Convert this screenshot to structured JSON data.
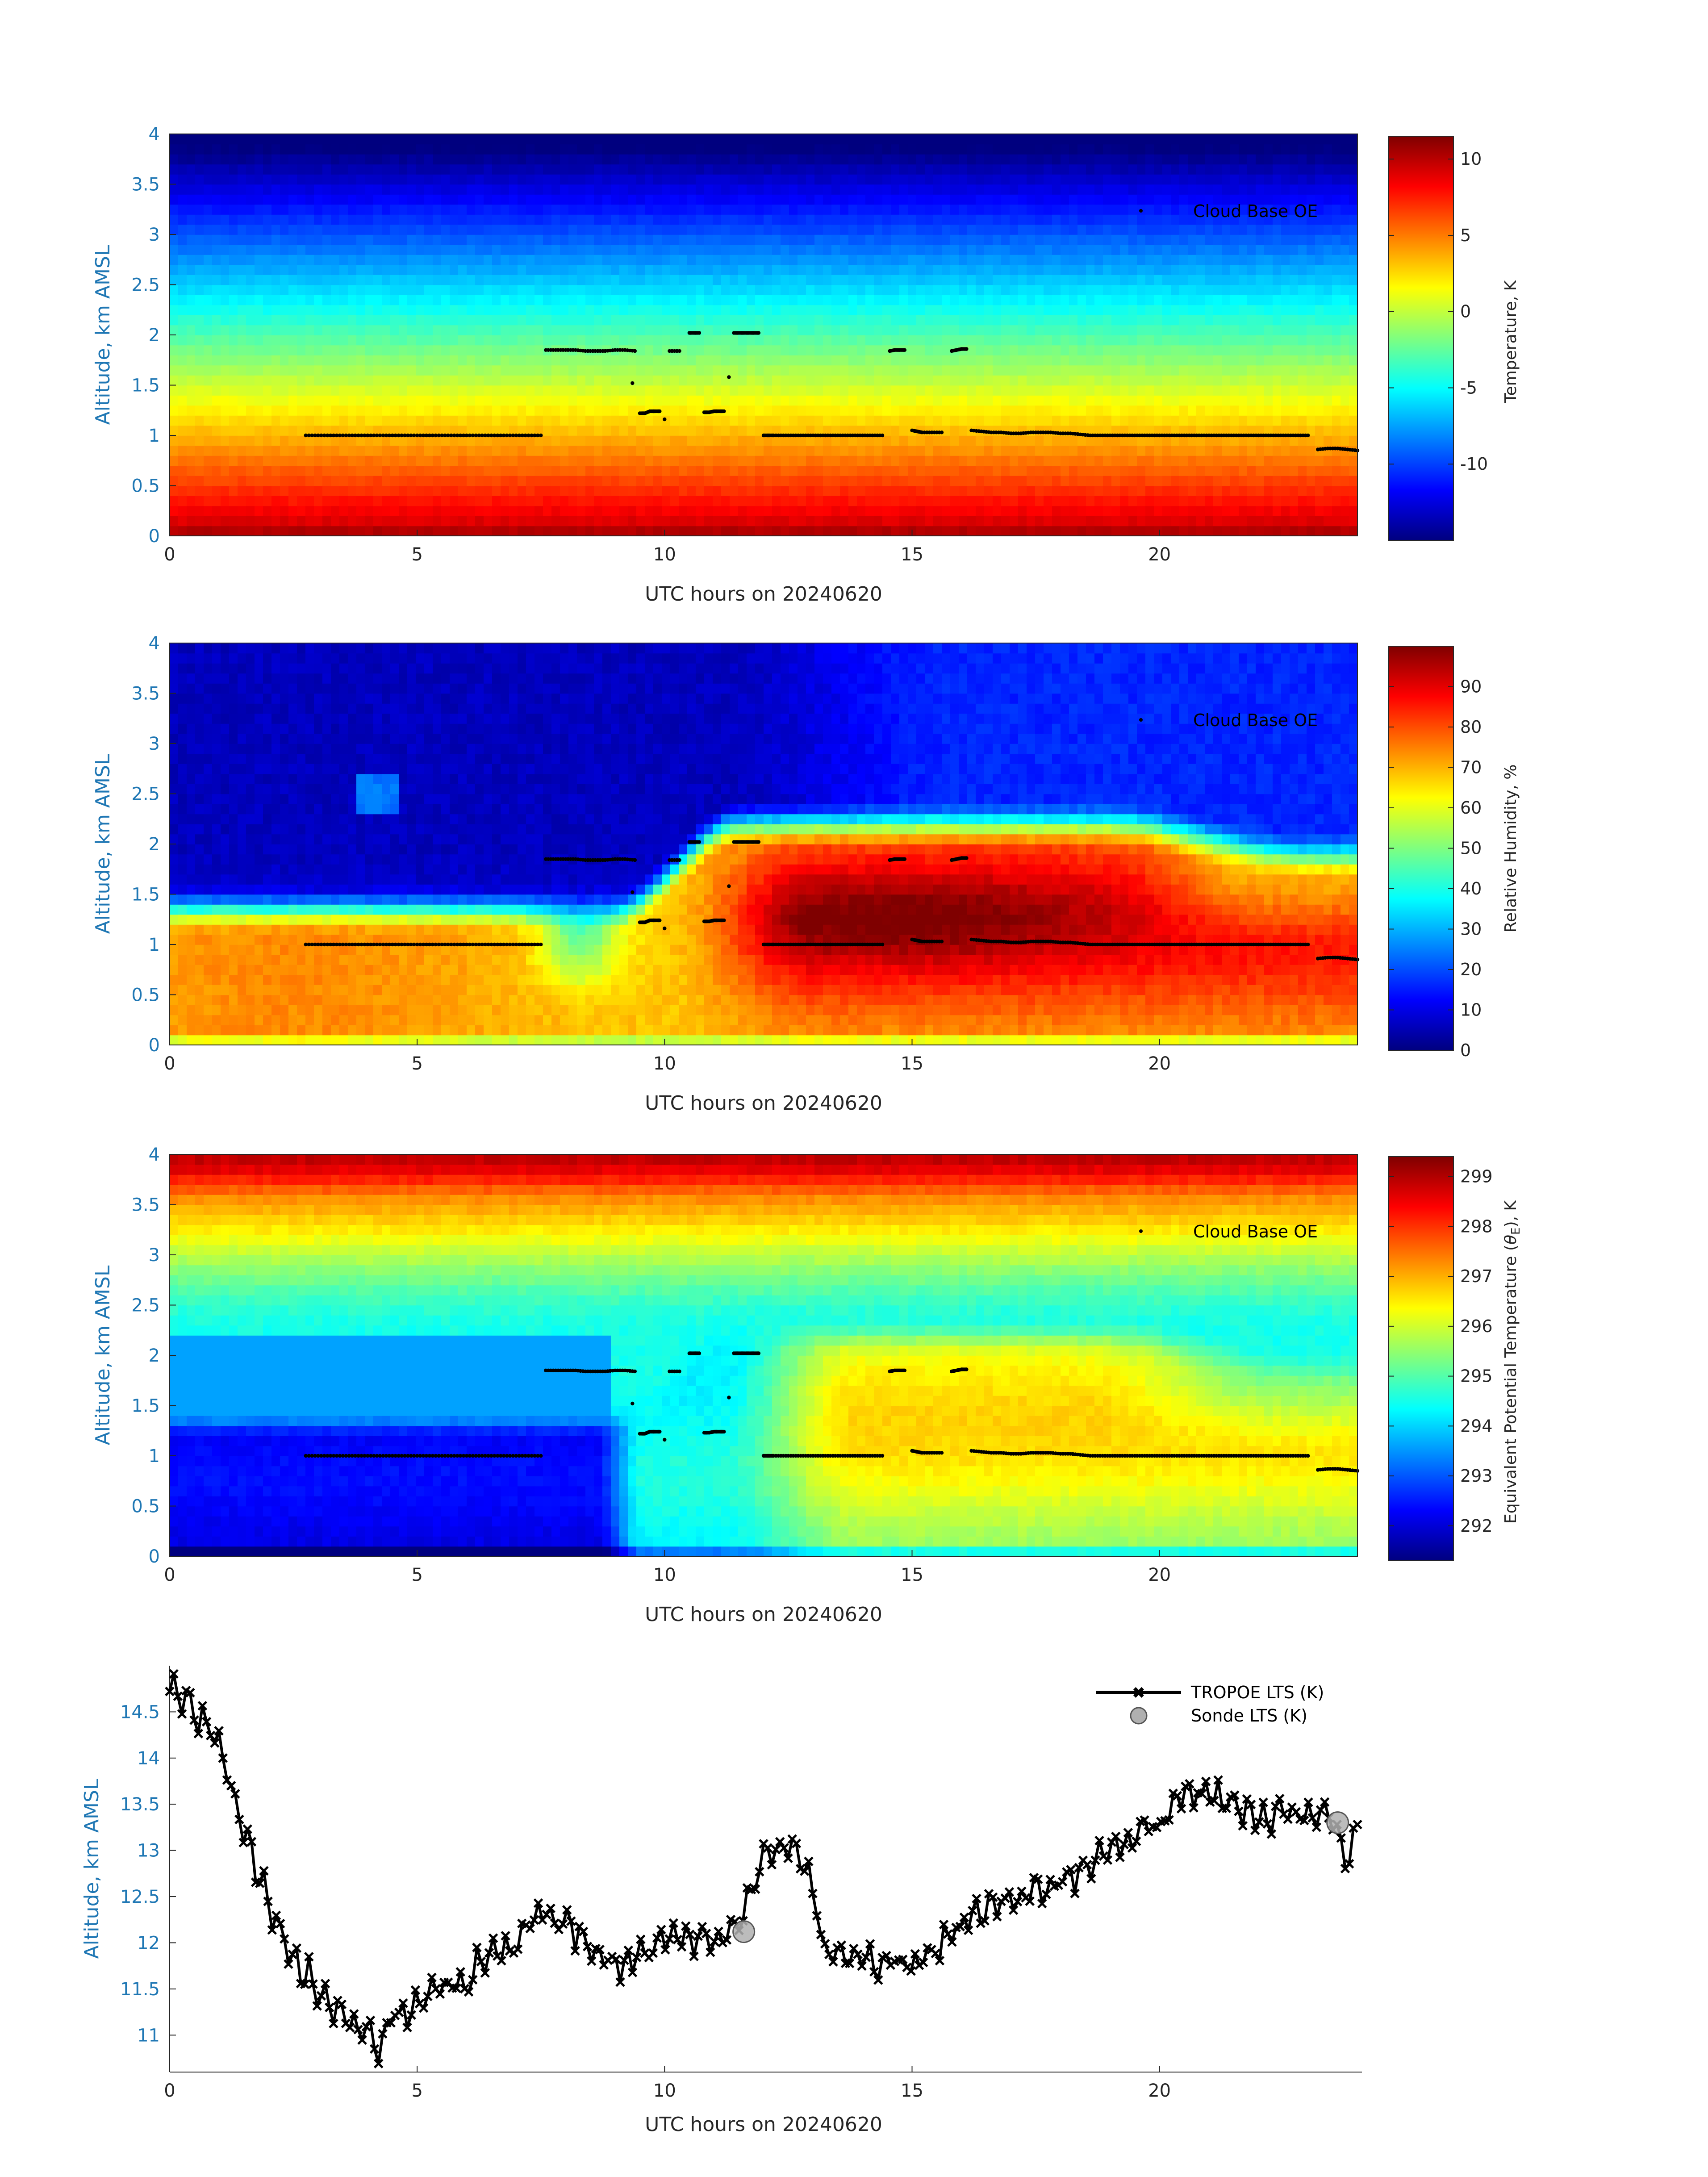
{
  "colors": {
    "jet": [
      "#00007f",
      "#0000ff",
      "#007fff",
      "#00ffff",
      "#7fff7f",
      "#ffff00",
      "#ff7f00",
      "#ff0000",
      "#7f0000"
    ],
    "axis": "#262626",
    "label": "#1f77b4",
    "cloud": "#000000",
    "sonde": "#b0b0b0"
  },
  "chart_data": [
    {
      "type": "heatmap",
      "id": "temperature",
      "xlabel": "UTC hours on 20240620",
      "ylabel": "Altitude, km AMSL",
      "xlim": [
        0,
        24
      ],
      "ylim": [
        0,
        4
      ],
      "xticks": [
        "0",
        "5",
        "10",
        "15",
        "20"
      ],
      "yticks": [
        "0",
        "0.5",
        "1",
        "1.5",
        "2",
        "2.5",
        "3",
        "3.5",
        "4"
      ],
      "colorbar": {
        "label": "Temperature, K",
        "range": [
          -15,
          11.5
        ],
        "ticks": [
          "-10",
          "-5",
          "0",
          "5",
          "10"
        ]
      },
      "surface_value": 10,
      "lapse_per_km": -6.5,
      "legend": "Cloud Base OE"
    },
    {
      "type": "heatmap",
      "id": "rh",
      "xlabel": "UTC hours on 20240620",
      "ylabel": "Altitude, km AMSL",
      "xlim": [
        0,
        24
      ],
      "ylim": [
        0,
        4
      ],
      "xticks": [
        "0",
        "5",
        "10",
        "15",
        "20"
      ],
      "yticks": [
        "0",
        "0.5",
        "1",
        "1.5",
        "2",
        "2.5",
        "3",
        "3.5",
        "4"
      ],
      "colorbar": {
        "label": "Relative Humidity, %",
        "range": [
          0,
          100
        ],
        "ticks": [
          "0",
          "10",
          "20",
          "30",
          "40",
          "50",
          "60",
          "70",
          "80",
          "90"
        ]
      },
      "legend": "Cloud Base OE"
    },
    {
      "type": "heatmap",
      "id": "thetae",
      "xlabel": "UTC hours on 20240620",
      "ylabel": "Altitude, km AMSL",
      "xlim": [
        0,
        24
      ],
      "ylim": [
        0,
        4
      ],
      "xticks": [
        "0",
        "5",
        "10",
        "15",
        "20"
      ],
      "yticks": [
        "0",
        "0.5",
        "1",
        "1.5",
        "2",
        "2.5",
        "3",
        "3.5",
        "4"
      ],
      "colorbar": {
        "label_prefix": "Equivalent Potential Temperature (",
        "label_symbol": "θ",
        "label_sub": "E",
        "label_suffix": "), K",
        "range": [
          291.3,
          299.4
        ],
        "ticks": [
          "292",
          "293",
          "294",
          "295",
          "296",
          "297",
          "298",
          "299"
        ]
      },
      "legend": "Cloud Base OE"
    },
    {
      "type": "line",
      "id": "lts",
      "xlabel": "UTC hours on 20240620",
      "ylabel": "Altitude, km AMSL",
      "xlim": [
        0,
        24
      ],
      "ylim": [
        10.6,
        15
      ],
      "xticks": [
        "0",
        "5",
        "10",
        "15",
        "20"
      ],
      "yticks": [
        "11",
        "11.5",
        "12",
        "12.5",
        "13",
        "13.5",
        "14",
        "14.5"
      ],
      "series": [
        {
          "name": "TROPOE LTS (K)",
          "x": [
            0,
            0.5,
            1.0,
            1.5,
            2.0,
            2.5,
            3.0,
            3.5,
            4.0,
            4.25,
            4.5,
            5.0,
            5.5,
            6.0,
            6.5,
            7.0,
            7.5,
            8.0,
            8.5,
            9.0,
            9.5,
            10.0,
            10.5,
            11.0,
            11.5,
            12.0,
            12.5,
            13.0,
            13.2,
            13.5,
            14.0,
            14.5,
            15.0,
            15.5,
            16.0,
            16.5,
            17.0,
            17.5,
            18.0,
            18.5,
            19.0,
            19.5,
            20.0,
            20.5,
            21.0,
            21.5,
            22.0,
            22.5,
            23.0,
            23.5,
            23.8,
            24.0
          ],
          "y": [
            14.78,
            14.45,
            14.2,
            13.2,
            12.4,
            11.85,
            11.5,
            11.15,
            11.05,
            10.85,
            11.2,
            11.3,
            11.55,
            11.6,
            11.9,
            12.0,
            12.3,
            12.2,
            11.95,
            11.75,
            11.85,
            12.05,
            12.05,
            12.05,
            12.2,
            12.9,
            13.1,
            12.6,
            11.95,
            11.85,
            11.8,
            11.75,
            11.8,
            11.95,
            12.15,
            12.35,
            12.5,
            12.55,
            12.7,
            12.8,
            13.05,
            13.15,
            13.25,
            13.65,
            13.6,
            13.45,
            13.35,
            13.4,
            13.35,
            13.3,
            12.95,
            13.3
          ]
        },
        {
          "name": "Sonde LTS (K)",
          "x": [
            11.6,
            23.6
          ],
          "y": [
            12.12,
            13.3
          ]
        }
      ]
    }
  ],
  "cloud_base": {
    "x": [
      2.75,
      3.0,
      3.25,
      3.5,
      3.75,
      4.0,
      4.25,
      4.5,
      4.75,
      5.0,
      5.25,
      5.5,
      5.75,
      6.0,
      6.25,
      6.5,
      6.75,
      7.0,
      7.25,
      7.5,
      7.6,
      7.8,
      8.0,
      8.2,
      8.4,
      8.6,
      8.8,
      9.0,
      9.2,
      9.4,
      9.35,
      9.5,
      9.6,
      9.7,
      9.8,
      9.9,
      10.0,
      10.1,
      10.3,
      10.5,
      10.6,
      10.7,
      10.8,
      10.9,
      11.0,
      11.1,
      11.2,
      11.3,
      11.4,
      11.5,
      11.6,
      11.7,
      11.8,
      11.9,
      12.0,
      12.1,
      12.2,
      12.4,
      12.6,
      12.8,
      13.0,
      13.2,
      13.4,
      13.6,
      13.8,
      14.0,
      14.2,
      14.4,
      14.55,
      14.65,
      14.75,
      14.85,
      15.0,
      15.1,
      15.2,
      15.4,
      15.6,
      15.8,
      15.9,
      16.0,
      16.1,
      16.2,
      16.4,
      16.6,
      16.8,
      17.0,
      17.2,
      17.4,
      17.6,
      17.8,
      18.0,
      18.2,
      18.4,
      18.6,
      18.8,
      19.0,
      19.2,
      19.4,
      19.6,
      19.8,
      20.0,
      20.2,
      20.4,
      20.6,
      20.8,
      21.0,
      21.2,
      21.4,
      21.6,
      21.8,
      22.0,
      22.2,
      22.4,
      22.6,
      22.8,
      23.0,
      23.2,
      23.4,
      23.6,
      23.8,
      24.0
    ],
    "y": [
      1.0,
      1.0,
      1.0,
      1.0,
      1.0,
      1.0,
      1.0,
      1.0,
      1.0,
      1.0,
      1.0,
      1.0,
      1.0,
      1.0,
      1.0,
      1.0,
      1.0,
      1.0,
      1.0,
      1.0,
      1.85,
      1.85,
      1.85,
      1.85,
      1.84,
      1.84,
      1.84,
      1.85,
      1.85,
      1.84,
      1.52,
      1.22,
      1.22,
      1.24,
      1.24,
      1.24,
      1.16,
      1.84,
      1.84,
      2.02,
      2.02,
      2.02,
      1.23,
      1.23,
      1.24,
      1.24,
      1.24,
      1.58,
      2.02,
      2.02,
      2.02,
      2.02,
      2.02,
      2.02,
      1.0,
      1.0,
      1.0,
      1.0,
      1.0,
      1.0,
      1.0,
      1.0,
      1.0,
      1.0,
      1.0,
      1.0,
      1.0,
      1.0,
      1.84,
      1.85,
      1.85,
      1.85,
      1.05,
      1.04,
      1.03,
      1.03,
      1.03,
      1.84,
      1.85,
      1.86,
      1.86,
      1.05,
      1.04,
      1.03,
      1.03,
      1.02,
      1.02,
      1.03,
      1.03,
      1.03,
      1.02,
      1.02,
      1.01,
      1.0,
      1.0,
      1.0,
      1.0,
      1.0,
      1.0,
      1.0,
      1.0,
      1.0,
      1.0,
      1.0,
      1.0,
      1.0,
      1.0,
      1.0,
      1.0,
      1.0,
      1.0,
      1.0,
      1.0,
      1.0,
      1.0,
      1.0,
      0.86,
      0.87,
      0.87,
      0.86,
      0.85
    ]
  }
}
